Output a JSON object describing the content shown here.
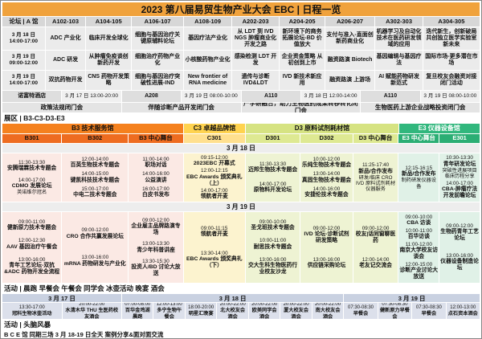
{
  "title": "2023 第八届易贸生物产业大会 EBC | 日程一览",
  "colors": {
    "title_bg": "#F0A23C",
    "b3_band": "#F5811E",
    "b3_sub": "#EE6C20",
    "b3_cell": "#FBE9E4",
    "c3_band": "#FFD34F",
    "c3_sub": "#FFE08F",
    "c3_cell": "#FCF3CF",
    "d3_band": "#D6E382",
    "d3_sub": "#DEE992",
    "d3_cell": "#EEF3D3",
    "e3_band": "#31B77D",
    "e3_sub": "#2BAE74",
    "e3_cell": "#E0F1E7",
    "e3_sub_text": "#FFFFFF"
  },
  "forum": {
    "label": "论坛 | A 馆",
    "halls": [
      "A102-103",
      "A104-105",
      "A106-107",
      "A108-109",
      "A202-203",
      "A204-205",
      "A206-207",
      "A302-303",
      "A304-305"
    ],
    "rows": [
      {
        "date": "3 月 18 日",
        "time": "14:00-17:00",
        "events": [
          "ADC 产业化",
          "临床开发全球化",
          "细胞与基因治疗关键原辅料论坛",
          "基因疗法产业化",
          "从 LDT 到 IVD NGS 肿瘤商业化开发之路",
          "新环境下的商务拓展论坛-BD 价值放大",
          "支付与准入-直面创新药商业化",
          "机器学习及自动化技术在医药研发领域的应用",
          "迭代新生，创新破局 共创独立医学实验室新未来"
        ]
      },
      {
        "date": "3 月 19 日",
        "time": "09:00-12:00",
        "events": [
          "ADC 研发",
          "从肿瘤免疫谈创新药开发",
          "细胞治疗药物产业化",
          "小核酸药物产业化",
          "感染检测 LDT 开发",
          "企业资金策略 从初创到上市",
          "融资路演 Biotech",
          "基因编辑与基因疗法",
          "国际市场-更多潜在市场"
        ]
      },
      {
        "date": "3 月 19 日",
        "time": "14:00-17:00",
        "events": [
          "双抗药物开发",
          "CNS 药物开发策略",
          "细胞与基因治疗突破性进展-IND",
          "New frontier of RNA medicine",
          "遗传与诊断 IVD&LDT",
          "IVD 新技术新应用",
          "融资路演 上游场",
          "AI 赋能药物研发新范式",
          "复旦校友会融资对接闭门活动"
        ]
      }
    ],
    "hotel_row": [
      "诺富特酒店",
      "3 月 17 日 13:00-20:00",
      "A208",
      "3 月 19 日 08:00-10:00",
      "A110",
      "3 月 18 日 12:00-14:00",
      "A110",
      "3 月 19 日 08:00-10:00"
    ],
    "closed_meetings": [
      "政策法规闭门会",
      "伴随诊断产品开发闭门会",
      "产学研融合，助力生物医药成果转移转化闭门会",
      "生物医药上游企业战略投资闭门会"
    ]
  },
  "expo": {
    "label": "展区 | B3-C3-D3-E3",
    "groups": [
      {
        "name": "B3  技术服务馆",
        "cols": [
          "B301",
          "B302",
          "B3 中心舞台"
        ],
        "key": "b3"
      },
      {
        "name": "C3 卓越品牌馆",
        "cols": [
          "C301"
        ],
        "key": "c3"
      },
      {
        "name": "D3  原料试剂耗材馆",
        "cols": [
          "D301",
          "D302",
          "D3 中心舞台"
        ],
        "key": "d3"
      },
      {
        "name": "E3  仪器设备馆",
        "cols": [
          "E3 中心舞台",
          "E301"
        ],
        "key": "e3"
      }
    ],
    "day1_label": "3 月 18 日",
    "day2_label": "3 月 19 日",
    "day1": [
      [
        {
          "t": "11:30-13:30",
          "n": "安腾瑞霖技术专题会"
        },
        {
          "t": "14:00-17:00",
          "n": "CDMO 发展论坛",
          "s": "英诺维尔冠名"
        }
      ],
      [
        {
          "t": "12:00-14:00",
          "n": "百英生物技术专题会"
        },
        {
          "t": "14:00-15:00",
          "n": "键凯科技技术专题会"
        },
        {
          "t": "15:00-17:00",
          "n": "中电二技术专题会"
        }
      ],
      [
        {
          "t": "11:00-14:00",
          "n": "职场对话"
        },
        {
          "t": "14:00-16:00",
          "n": "公益演讲"
        },
        {
          "t": "16:00-17:00",
          "n": "白皮书发布"
        }
      ],
      [
        {
          "t": "09:15-12:00",
          "n": "2023EBC 开幕式"
        },
        {
          "t": "12:00-12:15",
          "n": "EBC Awards 颁奖典礼（上）"
        },
        {
          "t": "14:00-17:00",
          "n": "领航者开麦"
        }
      ],
      [
        {
          "t": "11:30-13:30",
          "n": "迈邦生物技术专题会"
        },
        {
          "t": "14:00-17:00",
          "n": "原物料开发论坛"
        }
      ],
      [
        {
          "t": "10:00-12:00",
          "n": "乐纯生物技术专题会"
        },
        {
          "t": "13:00-14:00",
          "n": "真固生物技术专题会"
        },
        {
          "t": "14:00-16:00",
          "n": "安捷伦技术专题会"
        }
      ],
      [
        {
          "t": "11:25-17:40",
          "n": "新品/合作发布",
          "s": "研发/临床 CRO IVD 原料试剂耗材仪器服务"
        }
      ],
      [
        {
          "t": "12:15-16:15",
          "n": "新品/合作发布",
          "s": "制药研发仪器设备"
        }
      ],
      [
        {
          "t": "10:30-13:30",
          "n": "青年研发论坛",
          "s": "突破性进展项目 临床历程分享"
        },
        {
          "t": "14:00-17:00",
          "n": "CBA-肿瘤疗法开发前瞻论坛"
        }
      ]
    ],
    "day2": [
      [
        {
          "t": "09:00-11:00",
          "n": "健新原力技术专题会"
        },
        {
          "t": "12:00-12:30",
          "n": "AAV 基因治疗午餐会"
        },
        {
          "t": "13:00-16:00",
          "n": "青年工艺论坛-双抗&ADC 药物开发全流程"
        }
      ],
      [
        {
          "t": "09:00-12:00",
          "n": "CRO 合作共赢发展论坛"
        },
        {
          "t": "13:00-16:00",
          "n": "mRNA 药物研发与产业化"
        }
      ],
      [
        {
          "t": "09:00-12:00",
          "n": "企业雇主品牌路演专场"
        },
        {
          "t": "13:00-13:30",
          "n": "青少年科普讲座"
        },
        {
          "t": "13:30-15:30",
          "n": "投资人/BD 讨论大放送"
        }
      ],
      [
        {
          "t": "09:00-11:15",
          "n": "领航者开麦"
        },
        {
          "t": "13:30-14:00",
          "n": "EBC Awards 颁奖典礼（下）"
        }
      ],
      [
        {
          "t": "09:00-10:00",
          "n": "圣戈班技术专题会"
        },
        {
          "t": "10:00-11:00",
          "n": "耐思技术专题会"
        },
        {
          "t": "13:00-16:00",
          "n": "交大生科生物医药行业校友沙龙"
        }
      ],
      [
        {
          "t": "09:00-12:00",
          "n": "IVD 论坛-诊断试剂研发策略"
        },
        {
          "t": "13:00-16:00",
          "n": "供应链采购论坛"
        }
      ],
      [
        {
          "t": "09:00-12:00",
          "n": "校友|话同窗聊医药"
        },
        {
          "t": "12:00-14:00",
          "n": "老友记交流会"
        }
      ],
      [
        {
          "t": "09:00-10:00",
          "n": "CBA 访谈"
        },
        {
          "t": "10:00-11:00",
          "n": "百华访谈"
        },
        {
          "t": "11:00-12:00",
          "n": "南京大学校友访谈会"
        },
        {
          "t": "12:00-15:00",
          "n": "诊断产业讨论大放送"
        }
      ],
      [
        {
          "t": "09:00-12:00",
          "n": "生物药青年工艺论坛"
        },
        {
          "t": "13:00-16:00",
          "n": "仪器设备制造论坛"
        }
      ]
    ]
  },
  "activities": {
    "label": "活动 | 晨跑 早餐会 午餐会 同学会 冰壶活动 晚宴 酒会",
    "days": [
      {
        "date": "3 月 17 日",
        "items": [
          {
            "t": "13:30-17:00",
            "n": "冠科生物冰壶活动"
          },
          {
            "t": "20:00-22:00",
            "n": "水清木华 THU 生医药校友酒会"
          }
        ]
      },
      {
        "date": "3 月 18 日",
        "items": [
          {
            "t": "07:00-08:00",
            "n": "百华金鸡湖晨跑"
          },
          {
            "t": "12:00-13:00",
            "n": "多宁生物午餐会"
          },
          {
            "t": "18:00-20:00",
            "n": "明星汇晚宴"
          },
          {
            "t": "20:00-22:00",
            "n": "北大校友会酒会"
          },
          {
            "t": "20:00-22:00",
            "n": "欧美同学会酒会"
          },
          {
            "t": "20:00-22:00",
            "n": "厦大校友会酒会"
          },
          {
            "t": "20:00-22:00",
            "n": "南大校友会酒会"
          }
        ]
      },
      {
        "date": "3 月 19 日",
        "items": [
          {
            "t": "07:30-08:30",
            "n": "早餐会"
          },
          {
            "t": "07:30-08:30",
            "n": "健新原力早餐会"
          },
          {
            "t": "07:30-08:30",
            "n": "早餐会"
          },
          {
            "t": "12:00-13:00",
            "n": "点石资本酒会"
          }
        ]
      }
    ]
  },
  "brainstorm": {
    "label": "活动 | 头脑风暴",
    "detail": "B C E 馆 同期三场 3 月 18-19 日全天 案例分享&面对面交流"
  }
}
